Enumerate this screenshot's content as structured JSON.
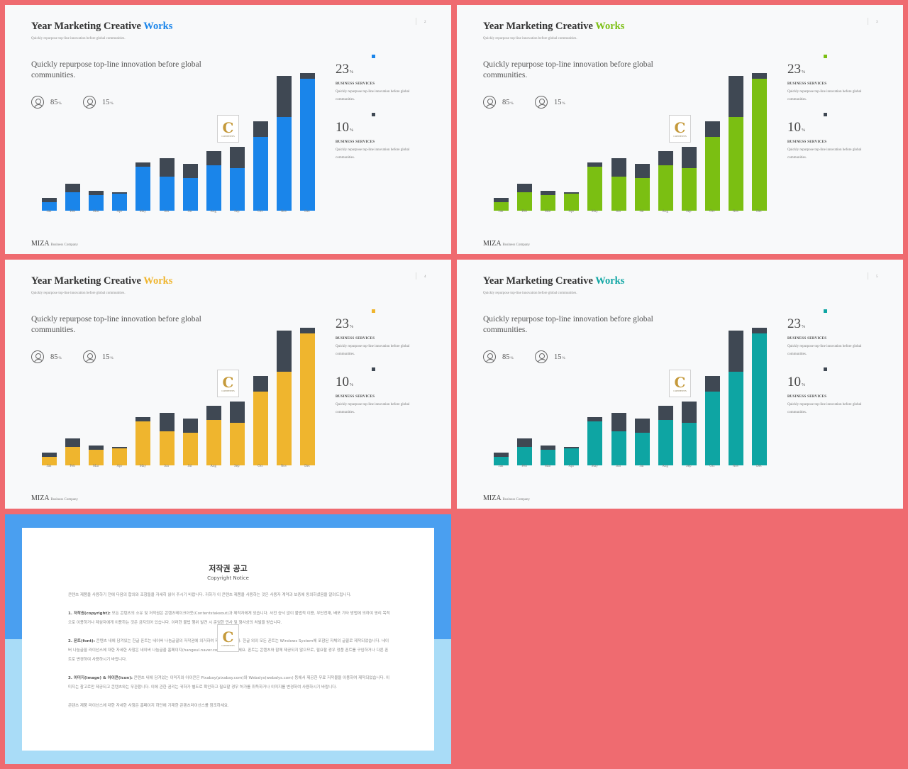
{
  "slide_common": {
    "title_main": "Year Marketing Creative",
    "title_accent": "Works",
    "subtitle": "Quickly repurpose top-line innovation before global communities.",
    "lead": "Quickly repurpose top-line innovation before global communities.",
    "stat1": {
      "value": "85",
      "unit": "%"
    },
    "stat2": {
      "value": "15",
      "unit": "%"
    },
    "kpi1": {
      "value": "23",
      "unit": "%",
      "heading": "BUSINESS SERVICES",
      "text": "Quickly repurpose top-line innovation before global communities."
    },
    "kpi2": {
      "value": "10",
      "unit": "%",
      "heading": "BUSINESS SERVICES",
      "text": "Quickly repurpose top-line innovation before global communities."
    },
    "brand": "MIZA",
    "brand_sub": "Business Company",
    "colors": {
      "dark_series": "#3f4853"
    }
  },
  "watermark": {
    "letter": "C",
    "text": "CONTENTS"
  },
  "slides": [
    {
      "page": "2",
      "accent": "#1a85ea"
    },
    {
      "page": "3",
      "accent": "#7bbf12"
    },
    {
      "page": "4",
      "accent": "#efb52e"
    },
    {
      "page": "5",
      "accent": "#0ea5a3"
    }
  ],
  "chart_data": {
    "type": "bar",
    "stacked": true,
    "categories": [
      "Jan",
      "Feb",
      "Mar",
      "Apr",
      "May",
      "Jun",
      "Jul",
      "Aug",
      "Sep",
      "Oct",
      "Nov",
      "Dec"
    ],
    "series": [
      {
        "values": [
          6,
          13,
          11,
          12,
          31,
          24,
          23,
          32,
          30,
          52,
          66,
          93
        ]
      },
      {
        "values": [
          3,
          6,
          3,
          1,
          3,
          13,
          10,
          10,
          15,
          11,
          29,
          4
        ]
      }
    ],
    "ylim": [
      0,
      100
    ]
  },
  "copyright": {
    "title": "저작권 공고",
    "subtitle": "Copyright Notice",
    "intro": "콘텐츠 제품을 사용하기 전에 다음의 합의와 조항들을 자세히 읽어 주시기 바랍니다. 귀하가 이 콘텐츠 제품을 사용하는 것은 사용자 계약과 보증에 동의하셨음을 알려드립니다.",
    "p1_head": "1. 저작권(copyright):",
    "p1": "모든 콘텐츠의 소유 및 저작권은 콘텐츠테이크아웃(Contentstakeout)과 제작자에게 있습니다. 사전 승낙 없이 불법적 이용, 무단전재, 배포 기타 방법에 의하여 영리 목적으로 이용하거나 제삼자에게 이용하는 것은 금지되어 있습니다. 이러한 불법 행위 발견 시 준엄한 민사 및 형사상의 처벌을 받습니다.",
    "p2_head": "2. 폰트(font):",
    "p2": "콘텐츠 내에 담겨있는 한글 폰트는 네이버 나눔글꼴의 저작권에 의거하여 제작되었습니다. 한글 외의 모든 폰트는 Windows System에 포함된 자체의 글꼴로 제작되었습니다. 네이버 나눔글꼴 라이선스에 대한 자세한 사항은 네이버 나눔글꼴 홈페이지(hangeul.naver.com)를 참조하세요. 폰트는 콘텐츠와 함께 제공되지 않으므로, 필요할 경우 정품 폰트를 구입하거나 다른 폰트로 변경하여 사용하시기 바랍니다.",
    "p3_head": "3. 이미지(image) & 아이콘(icon):",
    "p3": "콘텐츠 내에 담겨있는 이미지와 아이콘은 Pixabay(pixabay.com)와 Webalys(webalys.com) 등에서 제공한 무료 저작물을 이용하여 제작되었습니다. 이미지는 참고로만 제공되고 콘텐츠와는 무관합니다. 이에 관한 권리는 귀하가 별도로 확인하고 필요할 경우 허가를 취득하거나 이미지를 변경하여 사용하시기 바랍니다.",
    "outro": "콘텐츠 제품 라이선스에 대한 자세한 사항은 홈페이지 하단에 기재한 콘텐츠라이선스를 참조하세요."
  }
}
